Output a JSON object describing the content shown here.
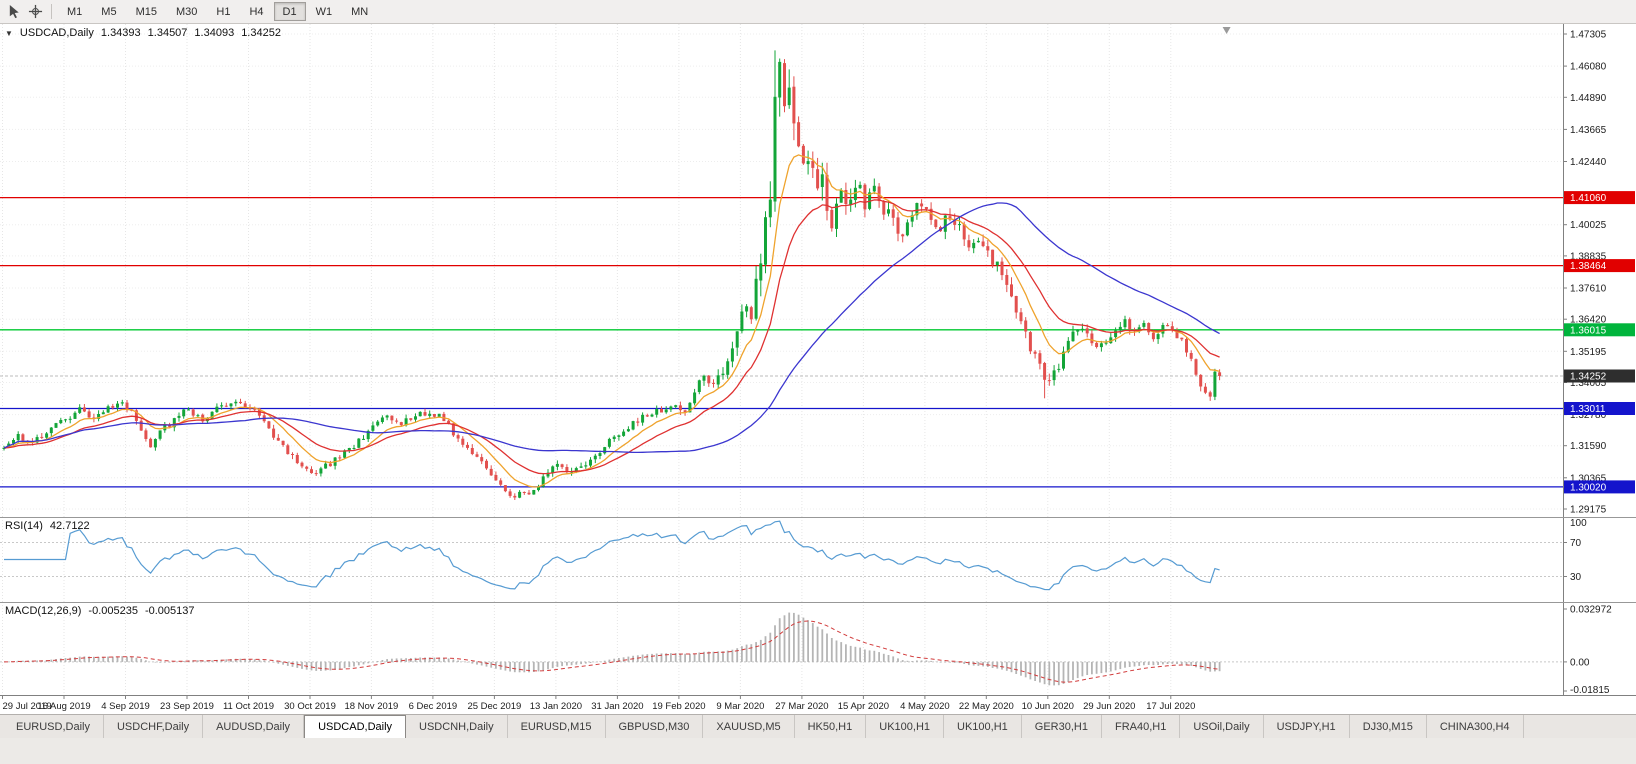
{
  "toolbar": {
    "timeframes": [
      "M1",
      "M5",
      "M15",
      "M30",
      "H1",
      "H4",
      "D1",
      "W1",
      "MN"
    ],
    "active_timeframe": "D1"
  },
  "chart": {
    "title": {
      "symbol": "USDCAD,Daily",
      "open": "1.34393",
      "high": "1.34507",
      "low": "1.34093",
      "close": "1.34252"
    }
  },
  "indicators": {
    "rsi": {
      "name": "RSI(14)",
      "value": "42.7122",
      "levels": [
        "100",
        "70",
        "30"
      ],
      "level_values": [
        100,
        70,
        30
      ],
      "color": "#569bd2"
    },
    "macd": {
      "name": "MACD(12,26,9)",
      "value_main": "-0.005235",
      "value_signal": "-0.005137",
      "levels": [
        "0.032972",
        "0.00",
        "-0.01815"
      ],
      "level_values": [
        0.032972,
        0,
        -0.01815
      ],
      "scale": {
        "top": 0.032972,
        "bottom": -0.01815
      },
      "histogram_color": "#b5b5b5",
      "signal_color": "#d23c3c"
    }
  },
  "price_axis": {
    "labels": [
      "1.47305",
      "1.46080",
      "1.44890",
      "1.43665",
      "1.42440",
      "1.40025",
      "1.38835",
      "1.37610",
      "1.36420",
      "1.35195",
      "1.34005",
      "1.32780",
      "1.31590",
      "1.30365",
      "1.29175"
    ],
    "tags": [
      {
        "label": "1.41060",
        "price": 1.4106,
        "color": "#e10000"
      },
      {
        "label": "1.38464",
        "price": 1.38464,
        "color": "#e10000"
      },
      {
        "label": "1.36015",
        "price": 1.36015,
        "color": "#00b43c"
      },
      {
        "label": "1.33011",
        "price": 1.33011,
        "color": "#1414cc"
      },
      {
        "label": "1.30020",
        "price": 1.3002,
        "color": "#1414cc"
      },
      {
        "label": "1.34252",
        "price": 1.34252,
        "color": "#2e2e2e"
      }
    ]
  },
  "time_axis": {
    "labels": [
      "29 Jul 2019",
      "16 Aug 2019",
      "4 Sep 2019",
      "23 Sep 2019",
      "11 Oct 2019",
      "30 Oct 2019",
      "18 Nov 2019",
      "6 Dec 2019",
      "25 Dec 2019",
      "13 Jan 2020",
      "31 Jan 2020",
      "19 Feb 2020",
      "9 Mar 2020",
      "27 Mar 2020",
      "15 Apr 2020",
      "4 May 2020",
      "22 May 2020",
      "10 Jun 2020",
      "29 Jun 2020",
      "17 Jul 2020"
    ]
  },
  "tabs": {
    "items": [
      "EURUSD,Daily",
      "USDCHF,Daily",
      "AUDUSD,Daily",
      "USDCAD,Daily",
      "USDCNH,Daily",
      "EURUSD,M15",
      "GBPUSD,M30",
      "XAUUSD,M5",
      "HK50,H1",
      "UK100,H1",
      "UK100,H1",
      "GER30,H1",
      "FRA40,H1",
      "USOil,Daily",
      "USDJPY,H1",
      "DJ30,M15",
      "CHINA300,H4"
    ],
    "active_index": 3
  },
  "chart_data": {
    "type": "candlestick",
    "symbol": "USDCAD",
    "timeframe": "Daily",
    "candle_count": 258,
    "candle_spacing": 4.73,
    "seed": 11,
    "bull_color": "#13a538",
    "bear_color": "#e2504e",
    "price_range": {
      "top": 1.476867,
      "bottom": 1.288699
    },
    "clamp": {
      "high": 1.467,
      "low": 1.2952
    },
    "current_price": 1.34252,
    "last_candle": {
      "open": 1.34393,
      "high": 1.34507,
      "low": 1.34093,
      "close": 1.34252
    },
    "hlines": [
      {
        "price": 1.4106,
        "color": "#e10000"
      },
      {
        "price": 1.38464,
        "color": "#e10000"
      },
      {
        "price": 1.36015,
        "color": "#00c830"
      },
      {
        "price": 1.33011,
        "color": "#1414cc"
      },
      {
        "price": 1.3002,
        "color": "#1414cc"
      }
    ],
    "moving_averages": [
      {
        "name": "ma-fast",
        "type": "ema",
        "period": 9,
        "color": "#efa32d"
      },
      {
        "name": "ma-mid",
        "type": "ema",
        "period": 20,
        "color": "#df3131"
      },
      {
        "name": "ma-slow",
        "type": "sma",
        "period": 52,
        "color": "#3b36cf"
      }
    ],
    "rsi_period": 14,
    "macd_periods": [
      12,
      26,
      9
    ],
    "extremes": [
      {
        "index": 163,
        "high": 1.4668
      },
      {
        "index": 108,
        "low": 1.2955
      },
      {
        "index": 220,
        "low": 1.334
      },
      {
        "index": 255,
        "low": 1.333
      }
    ],
    "price_anchors": [
      [
        0,
        1.315
      ],
      [
        3,
        1.3195
      ],
      [
        6,
        1.317
      ],
      [
        9,
        1.3215
      ],
      [
        13,
        1.326
      ],
      [
        16,
        1.33
      ],
      [
        19,
        1.3265
      ],
      [
        22,
        1.33
      ],
      [
        24,
        1.333
      ],
      [
        27,
        1.328
      ],
      [
        31,
        1.316
      ],
      [
        34,
        1.323
      ],
      [
        37,
        1.327
      ],
      [
        39,
        1.33
      ],
      [
        42,
        1.3255
      ],
      [
        45,
        1.33
      ],
      [
        48,
        1.333
      ],
      [
        51,
        1.331
      ],
      [
        54,
        1.328
      ],
      [
        57,
        1.32
      ],
      [
        60,
        1.313
      ],
      [
        63,
        1.308
      ],
      [
        66,
        1.306
      ],
      [
        69,
        1.309
      ],
      [
        72,
        1.313
      ],
      [
        75,
        1.3175
      ],
      [
        78,
        1.323
      ],
      [
        81,
        1.327
      ],
      [
        84,
        1.3245
      ],
      [
        87,
        1.327
      ],
      [
        90,
        1.329
      ],
      [
        93,
        1.3265
      ],
      [
        96,
        1.318
      ],
      [
        99,
        1.313
      ],
      [
        102,
        1.308
      ],
      [
        105,
        1.3
      ],
      [
        108,
        1.2968
      ],
      [
        111,
        1.298
      ],
      [
        114,
        1.303
      ],
      [
        117,
        1.3095
      ],
      [
        120,
        1.306
      ],
      [
        123,
        1.309
      ],
      [
        126,
        1.314
      ],
      [
        129,
        1.3195
      ],
      [
        132,
        1.3235
      ],
      [
        135,
        1.327
      ],
      [
        138,
        1.329
      ],
      [
        141,
        1.3305
      ],
      [
        144,
        1.329
      ],
      [
        146,
        1.336
      ],
      [
        148,
        1.343
      ],
      [
        150,
        1.339
      ],
      [
        152,
        1.342
      ],
      [
        154,
        1.352
      ],
      [
        156,
        1.365
      ],
      [
        157,
        1.372
      ],
      [
        158,
        1.365
      ],
      [
        159,
        1.377
      ],
      [
        160,
        1.389
      ],
      [
        161,
        1.401
      ],
      [
        162,
        1.415
      ],
      [
        163,
        1.45
      ],
      [
        164,
        1.456
      ],
      [
        165,
        1.445
      ],
      [
        166,
        1.452
      ],
      [
        167,
        1.438
      ],
      [
        168,
        1.43
      ],
      [
        169,
        1.419
      ],
      [
        170,
        1.428
      ],
      [
        171,
        1.423
      ],
      [
        172,
        1.415
      ],
      [
        173,
        1.419
      ],
      [
        174,
        1.406
      ],
      [
        175,
        1.397
      ],
      [
        176,
        1.407
      ],
      [
        177,
        1.413
      ],
      [
        178,
        1.407
      ],
      [
        179,
        1.412
      ],
      [
        180,
        1.416
      ],
      [
        182,
        1.409
      ],
      [
        184,
        1.414
      ],
      [
        186,
        1.407
      ],
      [
        188,
        1.401
      ],
      [
        190,
        1.397
      ],
      [
        192,
        1.404
      ],
      [
        194,
        1.409
      ],
      [
        196,
        1.404
      ],
      [
        198,
        1.399
      ],
      [
        200,
        1.404
      ],
      [
        202,
        1.399
      ],
      [
        204,
        1.393
      ],
      [
        206,
        1.396
      ],
      [
        208,
        1.39
      ],
      [
        210,
        1.384
      ],
      [
        212,
        1.378
      ],
      [
        214,
        1.368
      ],
      [
        216,
        1.358
      ],
      [
        218,
        1.35
      ],
      [
        220,
        1.343
      ],
      [
        221,
        1.34
      ],
      [
        223,
        1.347
      ],
      [
        225,
        1.355
      ],
      [
        227,
        1.3615
      ],
      [
        229,
        1.3575
      ],
      [
        231,
        1.353
      ],
      [
        233,
        1.356
      ],
      [
        235,
        1.3605
      ],
      [
        237,
        1.3635
      ],
      [
        239,
        1.3595
      ],
      [
        241,
        1.3615
      ],
      [
        243,
        1.358
      ],
      [
        245,
        1.3605
      ],
      [
        247,
        1.3595
      ],
      [
        249,
        1.3555
      ],
      [
        251,
        1.348
      ],
      [
        253,
        1.34
      ],
      [
        255,
        1.3355
      ],
      [
        256,
        1.344
      ],
      [
        257,
        1.34252
      ]
    ],
    "volatility_anchors": [
      [
        0,
        0.0028
      ],
      [
        140,
        0.0028
      ],
      [
        148,
        0.0045
      ],
      [
        154,
        0.007
      ],
      [
        160,
        0.0115
      ],
      [
        163,
        0.015
      ],
      [
        168,
        0.0115
      ],
      [
        175,
        0.0085
      ],
      [
        185,
        0.0065
      ],
      [
        200,
        0.0055
      ],
      [
        215,
        0.005
      ],
      [
        230,
        0.0038
      ],
      [
        257,
        0.0038
      ]
    ]
  }
}
